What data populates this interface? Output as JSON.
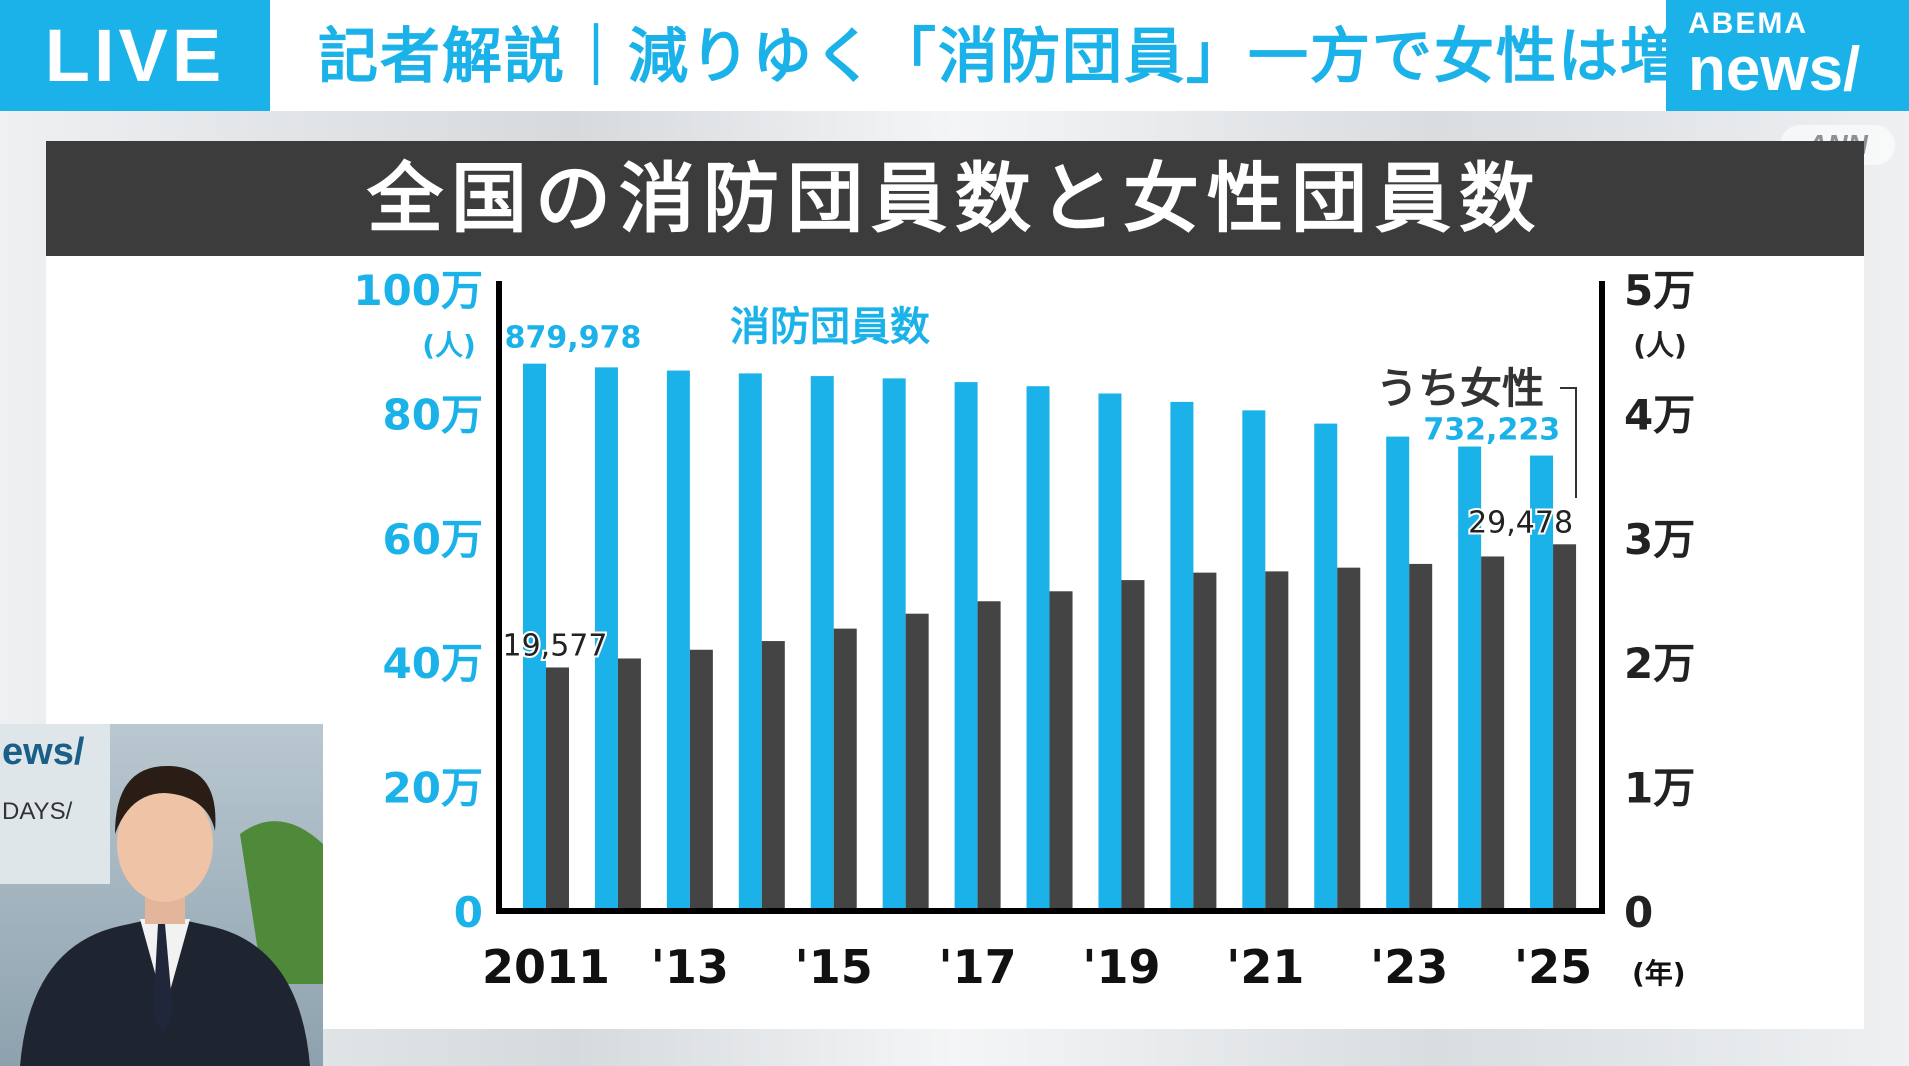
{
  "header": {
    "live_label": "LIVE",
    "headline": "記者解説｜減りゆく「消防団員」一方で女性は増",
    "brand_top": "ABEMA",
    "brand_bottom": "news/",
    "watermark": "ANN"
  },
  "colors": {
    "accent": "#1ab2e8",
    "dark_bar": "#444444",
    "title_band": "#3c3c3c"
  },
  "chart_data": {
    "type": "bar",
    "title": "全国の消防団員数と女性団員数",
    "categories": [
      "2011",
      "2012",
      "2013",
      "2014",
      "2015",
      "2016",
      "2017",
      "2018",
      "2019",
      "2020",
      "2021",
      "2022",
      "2023",
      "2024",
      "2025"
    ],
    "x_tick_labels": [
      "2011",
      "'13",
      "'15",
      "'17",
      "'19",
      "'21",
      "'23",
      "'25"
    ],
    "x_unit": "(年)",
    "series": [
      {
        "name": "消防団員数",
        "axis": "left",
        "color": "#1ab2e8",
        "values": [
          879978,
          874000,
          868900,
          864300,
          860000,
          856300,
          850300,
          843700,
          832000,
          818500,
          804900,
          783600,
          762700,
          746700,
          732223
        ]
      },
      {
        "name": "うち女性",
        "axis": "right",
        "color": "#444444",
        "values": [
          19577,
          20300,
          21000,
          21700,
          22700,
          23900,
          24900,
          25700,
          26600,
          27200,
          27300,
          27600,
          27900,
          28500,
          29478
        ]
      }
    ],
    "data_labels": {
      "first_total": "879,978",
      "last_total": "732,223",
      "first_women": "19,577",
      "last_women": "29,478"
    },
    "left_axis": {
      "ylim": [
        0,
        1000000
      ],
      "ticks": [
        "0",
        "20万",
        "40万",
        "60万",
        "80万",
        "100万"
      ],
      "unit": "(人)"
    },
    "right_axis": {
      "ylim": [
        0,
        50000
      ],
      "ticks": [
        "0",
        "1万",
        "2万",
        "3万",
        "4万",
        "5万"
      ],
      "unit": "(人)"
    },
    "grid": false,
    "legend": "inline labels"
  }
}
